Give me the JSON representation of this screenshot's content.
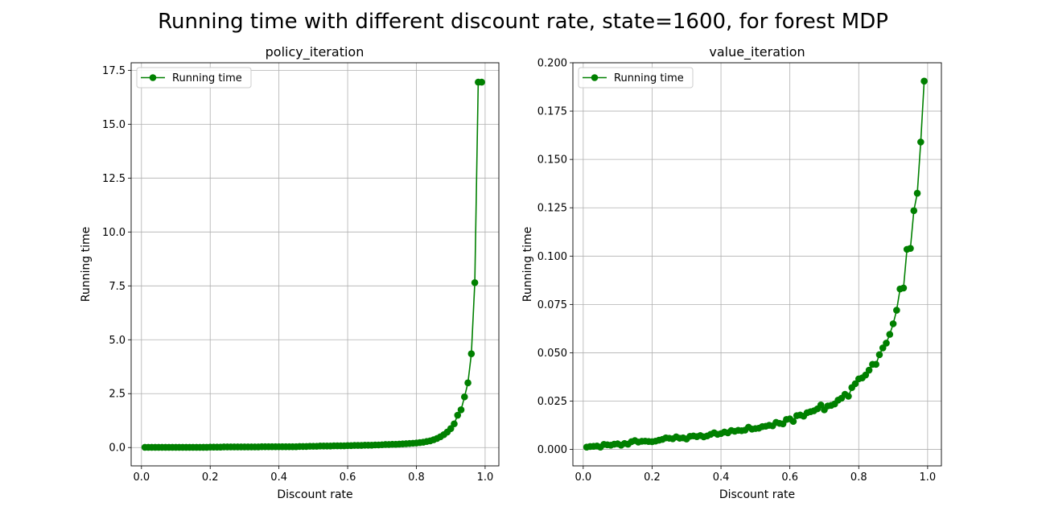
{
  "figure": {
    "title": "Running time with different discount rate, state=1600, for forest MDP"
  },
  "colors": {
    "series": "#008000",
    "grid": "#b0b0b0",
    "axis": "#000000"
  },
  "chart_data": [
    {
      "type": "line",
      "title": "policy_iteration",
      "xlabel": "Discount rate",
      "ylabel": "Running time",
      "xlim": [
        -0.03,
        1.04
      ],
      "ylim": [
        -0.85,
        17.85
      ],
      "xticks": [
        0.0,
        0.2,
        0.4,
        0.6,
        0.8,
        1.0
      ],
      "xtick_labels": [
        "0.0",
        "0.2",
        "0.4",
        "0.6",
        "0.8",
        "1.0"
      ],
      "yticks": [
        0.0,
        2.5,
        5.0,
        7.5,
        10.0,
        12.5,
        15.0,
        17.5
      ],
      "ytick_labels": [
        "0.0",
        "2.5",
        "5.0",
        "7.5",
        "10.0",
        "12.5",
        "15.0",
        "17.5"
      ],
      "grid": true,
      "legend": "upper-left",
      "series": [
        {
          "name": "Running time",
          "marker": "circle",
          "x": [
            0.01,
            0.02,
            0.03,
            0.04,
            0.05,
            0.06,
            0.07,
            0.08,
            0.09,
            0.1,
            0.11,
            0.12,
            0.13,
            0.14,
            0.15,
            0.16,
            0.17,
            0.18,
            0.19,
            0.2,
            0.21,
            0.22,
            0.23,
            0.24,
            0.25,
            0.26,
            0.27,
            0.28,
            0.29,
            0.3,
            0.31,
            0.32,
            0.33,
            0.34,
            0.35,
            0.36,
            0.37,
            0.38,
            0.39,
            0.4,
            0.41,
            0.42,
            0.43,
            0.44,
            0.45,
            0.46,
            0.47,
            0.48,
            0.49,
            0.5,
            0.51,
            0.52,
            0.53,
            0.54,
            0.55,
            0.56,
            0.57,
            0.58,
            0.59,
            0.6,
            0.61,
            0.62,
            0.63,
            0.64,
            0.65,
            0.66,
            0.67,
            0.68,
            0.69,
            0.7,
            0.71,
            0.72,
            0.73,
            0.74,
            0.75,
            0.76,
            0.77,
            0.78,
            0.79,
            0.8,
            0.81,
            0.82,
            0.83,
            0.84,
            0.85,
            0.86,
            0.87,
            0.88,
            0.89,
            0.9,
            0.91,
            0.92,
            0.93,
            0.94,
            0.95,
            0.96,
            0.97,
            0.98,
            0.99
          ],
          "y": [
            0.01,
            0.01,
            0.01,
            0.01,
            0.01,
            0.01,
            0.01,
            0.01,
            0.01,
            0.01,
            0.01,
            0.01,
            0.01,
            0.01,
            0.01,
            0.01,
            0.01,
            0.01,
            0.01,
            0.02,
            0.02,
            0.02,
            0.02,
            0.03,
            0.03,
            0.03,
            0.03,
            0.03,
            0.03,
            0.03,
            0.03,
            0.03,
            0.03,
            0.03,
            0.04,
            0.04,
            0.04,
            0.04,
            0.04,
            0.04,
            0.04,
            0.04,
            0.04,
            0.04,
            0.04,
            0.05,
            0.05,
            0.05,
            0.06,
            0.06,
            0.06,
            0.07,
            0.07,
            0.07,
            0.07,
            0.08,
            0.08,
            0.08,
            0.08,
            0.09,
            0.09,
            0.1,
            0.1,
            0.1,
            0.11,
            0.11,
            0.11,
            0.12,
            0.12,
            0.13,
            0.14,
            0.14,
            0.15,
            0.15,
            0.16,
            0.17,
            0.18,
            0.19,
            0.2,
            0.21,
            0.23,
            0.25,
            0.28,
            0.31,
            0.36,
            0.42,
            0.5,
            0.6,
            0.72,
            0.88,
            1.1,
            1.5,
            1.75,
            2.35,
            3.0,
            4.35,
            7.65,
            16.95,
            16.95
          ]
        }
      ]
    },
    {
      "type": "line",
      "title": "value_iteration",
      "xlabel": "Discount rate",
      "ylabel": "Running time",
      "xlim": [
        -0.03,
        1.04
      ],
      "ylim": [
        -0.0085,
        0.2
      ],
      "xticks": [
        0.0,
        0.2,
        0.4,
        0.6,
        0.8,
        1.0
      ],
      "xtick_labels": [
        "0.0",
        "0.2",
        "0.4",
        "0.6",
        "0.8",
        "1.0"
      ],
      "yticks": [
        0.0,
        0.025,
        0.05,
        0.075,
        0.1,
        0.125,
        0.15,
        0.175,
        0.2
      ],
      "ytick_labels": [
        "0.000",
        "0.025",
        "0.050",
        "0.075",
        "0.100",
        "0.125",
        "0.150",
        "0.175",
        "0.200"
      ],
      "grid": true,
      "legend": "upper-left",
      "series": [
        {
          "name": "Running time",
          "marker": "circle",
          "x": [
            0.01,
            0.02,
            0.03,
            0.04,
            0.05,
            0.06,
            0.07,
            0.08,
            0.09,
            0.1,
            0.11,
            0.12,
            0.13,
            0.14,
            0.15,
            0.16,
            0.17,
            0.18,
            0.19,
            0.2,
            0.21,
            0.22,
            0.23,
            0.24,
            0.25,
            0.26,
            0.27,
            0.28,
            0.29,
            0.3,
            0.31,
            0.32,
            0.33,
            0.34,
            0.35,
            0.36,
            0.37,
            0.38,
            0.39,
            0.4,
            0.41,
            0.42,
            0.43,
            0.44,
            0.45,
            0.46,
            0.47,
            0.48,
            0.49,
            0.5,
            0.51,
            0.52,
            0.53,
            0.54,
            0.55,
            0.56,
            0.57,
            0.58,
            0.59,
            0.6,
            0.61,
            0.62,
            0.63,
            0.64,
            0.65,
            0.66,
            0.67,
            0.68,
            0.69,
            0.7,
            0.71,
            0.72,
            0.73,
            0.74,
            0.75,
            0.76,
            0.77,
            0.78,
            0.79,
            0.8,
            0.81,
            0.82,
            0.83,
            0.84,
            0.85,
            0.86,
            0.87,
            0.88,
            0.89,
            0.9,
            0.91,
            0.92,
            0.93,
            0.94,
            0.95,
            0.96,
            0.97,
            0.98,
            0.99
          ],
          "y": [
            0.0012,
            0.0015,
            0.0016,
            0.0018,
            0.0012,
            0.0026,
            0.0024,
            0.0022,
            0.0027,
            0.0029,
            0.0022,
            0.0031,
            0.0027,
            0.004,
            0.0046,
            0.0038,
            0.0042,
            0.0043,
            0.0041,
            0.004,
            0.0043,
            0.0048,
            0.0052,
            0.006,
            0.0058,
            0.0055,
            0.0065,
            0.0058,
            0.006,
            0.0054,
            0.0068,
            0.007,
            0.0066,
            0.0072,
            0.0065,
            0.007,
            0.0078,
            0.0086,
            0.0078,
            0.0082,
            0.009,
            0.0086,
            0.0098,
            0.0094,
            0.0099,
            0.0097,
            0.01,
            0.0115,
            0.0105,
            0.0108,
            0.011,
            0.0118,
            0.012,
            0.0125,
            0.0122,
            0.014,
            0.0135,
            0.0132,
            0.0155,
            0.0158,
            0.0145,
            0.0175,
            0.0178,
            0.0172,
            0.019,
            0.0195,
            0.02,
            0.021,
            0.023,
            0.0205,
            0.0225,
            0.0228,
            0.0235,
            0.0255,
            0.0265,
            0.0285,
            0.0275,
            0.032,
            0.034,
            0.0365,
            0.037,
            0.0385,
            0.041,
            0.044,
            0.044,
            0.049,
            0.0525,
            0.055,
            0.0595,
            0.065,
            0.072,
            0.083,
            0.0835,
            0.1035,
            0.104,
            0.1235,
            0.1325,
            0.159,
            0.1905
          ]
        }
      ]
    }
  ]
}
